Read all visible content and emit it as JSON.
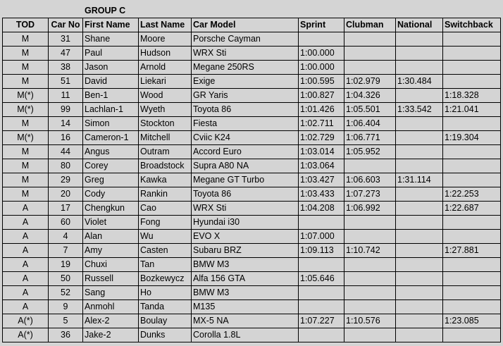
{
  "group_title": "GROUP C",
  "columns": [
    "TOD",
    "Car No",
    "First Name",
    "Last Name",
    "Car Model",
    "Sprint",
    "Clubman",
    "National",
    "Switchback"
  ],
  "rows": [
    [
      "M",
      "31",
      "Shane",
      "Moore",
      "Porsche Cayman",
      "",
      "",
      "",
      ""
    ],
    [
      "M",
      "47",
      "Paul",
      "Hudson",
      "WRX Sti",
      "1:00.000",
      "",
      "",
      ""
    ],
    [
      "M",
      "38",
      "Jason",
      "Arnold",
      "Megane 250RS",
      "1:00.000",
      "",
      "",
      ""
    ],
    [
      "M",
      "51",
      "David",
      "Liekari",
      "Exige",
      "1:00.595",
      "1:02.979",
      "1:30.484",
      ""
    ],
    [
      "M(*)",
      "11",
      "Ben-1",
      "Wood",
      "GR Yaris",
      "1:00.827",
      "1:04.326",
      "",
      "1:18.328"
    ],
    [
      "M(*)",
      "99",
      "Lachlan-1",
      "Wyeth",
      "Toyota 86",
      "1:01.426",
      "1:05.501",
      "1:33.542",
      "1:21.041"
    ],
    [
      "M",
      "14",
      "Simon",
      "Stockton",
      "Fiesta",
      "1:02.711",
      "1:06.404",
      "",
      ""
    ],
    [
      "M(*)",
      "16",
      "Cameron-1",
      "Mitchell",
      "Cviic K24",
      "1:02.729",
      "1:06.771",
      "",
      "1:19.304"
    ],
    [
      "M",
      "44",
      "Angus",
      "Outram",
      "Accord Euro",
      "1:03.014",
      "1:05.952",
      "",
      ""
    ],
    [
      "M",
      "80",
      "Corey",
      "Broadstock",
      "Supra A80 NA",
      "1:03.064",
      "",
      "",
      ""
    ],
    [
      "M",
      "29",
      "Greg",
      "Kawka",
      "Megane GT Turbo",
      "1:03.427",
      "1:06.603",
      "1:31.114",
      ""
    ],
    [
      "M",
      "20",
      "Cody",
      "Rankin",
      "Toyota 86",
      "1:03.433",
      "1:07.273",
      "",
      "1:22.253"
    ],
    [
      "A",
      "17",
      "Chengkun",
      "Cao",
      "WRX Sti",
      "1:04.208",
      "1:06.992",
      "",
      "1:22.687"
    ],
    [
      "A",
      "60",
      "Violet",
      "Fong",
      "Hyundai i30",
      "",
      "",
      "",
      ""
    ],
    [
      "A",
      "4",
      "Alan",
      "Wu",
      "EVO X",
      "1:07.000",
      "",
      "",
      ""
    ],
    [
      "A",
      "7",
      "Amy",
      "Casten",
      "Subaru BRZ",
      "1:09.113",
      "1:10.742",
      "",
      "1:27.881"
    ],
    [
      "A",
      "19",
      "Chuxi",
      "Tan",
      "BMW M3",
      "",
      "",
      "",
      ""
    ],
    [
      "A",
      "50",
      "Russell",
      "Bozkewycz",
      "Alfa 156 GTA",
      "1:05.646",
      "",
      "",
      ""
    ],
    [
      "A",
      "52",
      "Sang",
      "Ho",
      "BMW M3",
      "",
      "",
      "",
      ""
    ],
    [
      "A",
      "9",
      "Anmohl",
      "Tanda",
      "M135",
      "",
      "",
      "",
      ""
    ],
    [
      "A(*)",
      "5",
      "Alex-2",
      "Boulay",
      "MX-5 NA",
      "1:07.227",
      "1:10.576",
      "",
      "1:23.085"
    ],
    [
      "A(*)",
      "36",
      "Jake-2",
      "Dunks",
      "Corolla 1.8L",
      "",
      "",
      "",
      ""
    ]
  ]
}
